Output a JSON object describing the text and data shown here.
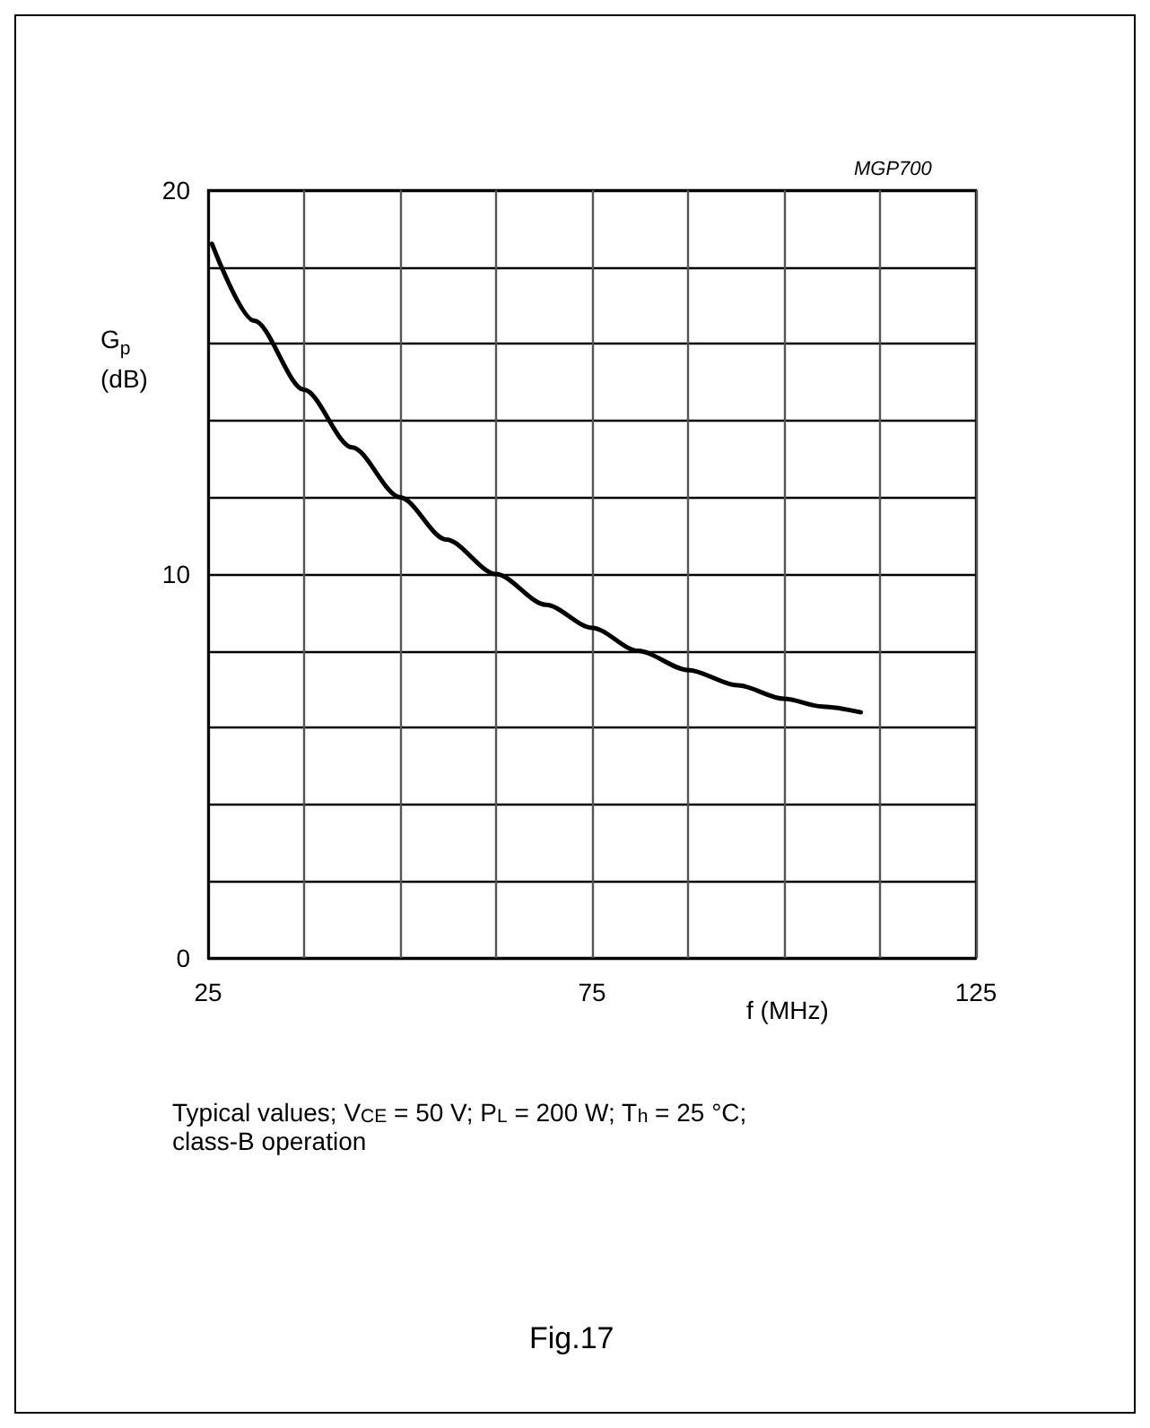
{
  "chart_data": {
    "type": "line",
    "xlabel": "f (MHz)",
    "ylabel": "G$_{p}$\n(dB)",
    "x": [
      25.5,
      31,
      37.5,
      43.75,
      50,
      56,
      62.5,
      69,
      75,
      81,
      87.5,
      94,
      100,
      105,
      110
    ],
    "series": [
      {
        "color": "#000000",
        "values": [
          18.6,
          16.6,
          14.8,
          13.3,
          12.0,
          10.9,
          10.0,
          9.2,
          8.6,
          8.0,
          7.5,
          7.1,
          6.75,
          6.55,
          6.4
        ]
      }
    ],
    "xlim": [
      25,
      125
    ],
    "ylim": [
      0,
      20
    ],
    "xticks": [
      25,
      {
        "value": 37.5,
        "label": null
      },
      {
        "value": 50,
        "label": null
      },
      {
        "value": 62.5,
        "label": null
      },
      75,
      {
        "value": 87.5,
        "label": null
      },
      {
        "value": 100,
        "label": null
      },
      {
        "value": 112.5,
        "label": null
      },
      125
    ],
    "yticks": [
      0,
      {
        "value": 2,
        "label": null
      },
      {
        "value": 4,
        "label": null
      },
      {
        "value": 6,
        "label": null
      },
      {
        "value": 8,
        "label": null
      },
      10,
      {
        "value": 12,
        "label": null
      },
      {
        "value": 14,
        "label": null
      },
      {
        "value": 16,
        "label": null
      },
      {
        "value": 18,
        "label": null
      },
      20
    ],
    "grid": true,
    "marker": "none",
    "line_style": "solid",
    "annotations": [
      "MGP700",
      "Typical values; V$_{CE}$ = 50 V; P$_{L}$ = 200 W; T$_{h}$ = 25 °C;\nclass-B operation",
      "Fig.17"
    ]
  }
}
